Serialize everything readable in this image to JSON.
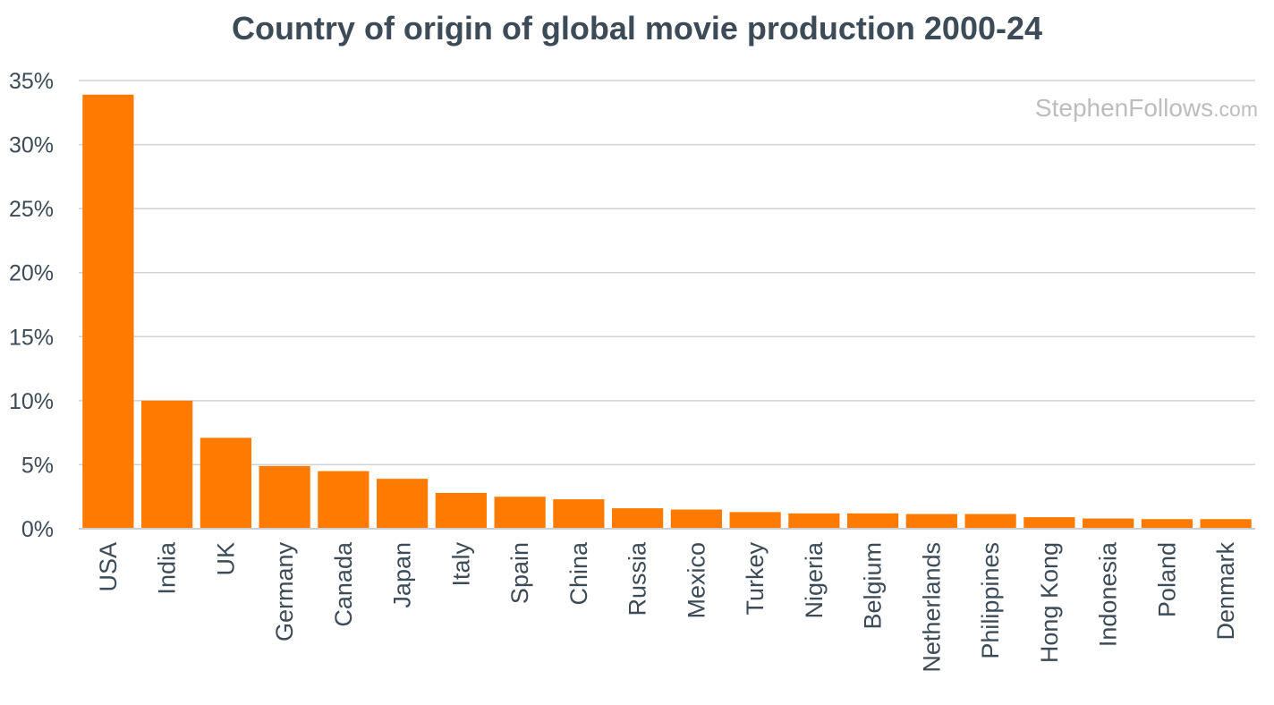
{
  "chart_data": {
    "type": "bar",
    "title": "Country of origin of global movie production 2000-24",
    "xlabel": "",
    "ylabel": "",
    "ylim": [
      0,
      35
    ],
    "yticks": [
      "0%",
      "5%",
      "10%",
      "15%",
      "20%",
      "25%",
      "30%",
      "35%"
    ],
    "grid": true,
    "legend": "none",
    "categories": [
      "USA",
      "India",
      "UK",
      "Germany",
      "Canada",
      "Japan",
      "Italy",
      "Spain",
      "China",
      "Russia",
      "Mexico",
      "Turkey",
      "Nigeria",
      "Belgium",
      "Netherlands",
      "Philippines",
      "Hong Kong",
      "Indonesia",
      "Poland",
      "Denmark"
    ],
    "values": [
      33.9,
      10.0,
      7.1,
      4.9,
      4.5,
      3.9,
      2.8,
      2.5,
      2.3,
      1.6,
      1.5,
      1.3,
      1.2,
      1.2,
      1.15,
      1.15,
      0.9,
      0.8,
      0.75,
      0.75
    ]
  },
  "watermark": {
    "main": "StephenFollows",
    "suffix": ".com"
  },
  "colors": {
    "bar": "#ff7a00",
    "title": "#3d4a57",
    "text": "#3d4a57",
    "grid": "#d3d3d3",
    "watermark": "#bdbdbd"
  }
}
